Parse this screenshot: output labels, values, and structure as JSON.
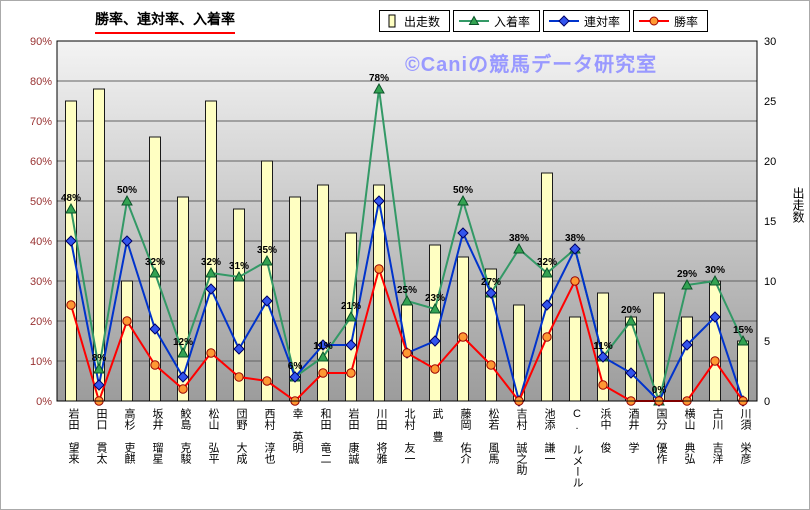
{
  "watermark": "©Caniの競馬データ研究室",
  "chart_data": {
    "type": "bar",
    "title": "勝率、連対率、入着率",
    "categories": [
      "岩田 望来",
      "田口 貫太",
      "高杉 吏麒",
      "坂井 瑠星",
      "鮫島 克駿",
      "松山 弘平",
      "団野 大成",
      "西村 淳也",
      "幸 英明",
      "和田 竜二",
      "岩田 康誠",
      "川田 将雅",
      "北村 友一",
      "武 豊",
      "藤岡 佑介",
      "松若 風馬",
      "吉村 誠之助",
      "池添 謙一",
      "C. ルメール",
      "浜中 俊",
      "酒井 学",
      "国分 優作",
      "横山 典弘",
      "古川 吉洋",
      "川須 栄彦"
    ],
    "bar_series": {
      "name": "出走数",
      "axis": "right",
      "color": "#FFFFC2",
      "values": [
        25,
        26,
        10,
        22,
        17,
        25,
        16,
        20,
        17,
        18,
        14,
        18,
        8,
        13,
        12,
        11,
        8,
        19,
        7,
        9,
        7,
        9,
        7,
        10,
        5
      ]
    },
    "line_series": [
      {
        "name": "入着率",
        "color": "#339966",
        "marker": "triangle",
        "marker_fill": "#33A352",
        "marker_stroke": "#0B5329",
        "data_labels": true,
        "values": [
          48,
          8,
          50,
          32,
          12,
          32,
          31,
          35,
          6,
          11,
          21,
          78,
          25,
          23,
          50,
          27,
          38,
          32,
          38,
          11,
          20,
          0,
          29,
          30,
          15
        ]
      },
      {
        "name": "連対率",
        "color": "#0033CC",
        "marker": "diamond",
        "marker_fill": "#3355EE",
        "marker_stroke": "#000066",
        "data_labels": false,
        "values": [
          40,
          4,
          40,
          18,
          6,
          28,
          13,
          25,
          6,
          14,
          14,
          50,
          12,
          15,
          42,
          27,
          0,
          24,
          38,
          11,
          7,
          0,
          14,
          21,
          0
        ]
      },
      {
        "name": "勝率",
        "color": "#FF0000",
        "marker": "circle",
        "marker_fill": "#FF9933",
        "marker_stroke": "#990000",
        "data_labels": false,
        "values": [
          24,
          0,
          20,
          9,
          3,
          12,
          6,
          5,
          0,
          7,
          7,
          33,
          12,
          8,
          16,
          9,
          0,
          16,
          30,
          4,
          0,
          0,
          0,
          10,
          0
        ]
      }
    ],
    "left_axis": {
      "min": 0,
      "max": 90,
      "step": 10,
      "format": "percent"
    },
    "right_axis": {
      "min": 0,
      "max": 30,
      "step": 5,
      "title": "出走数"
    },
    "legend_position": "top",
    "grid": "horizontal"
  }
}
